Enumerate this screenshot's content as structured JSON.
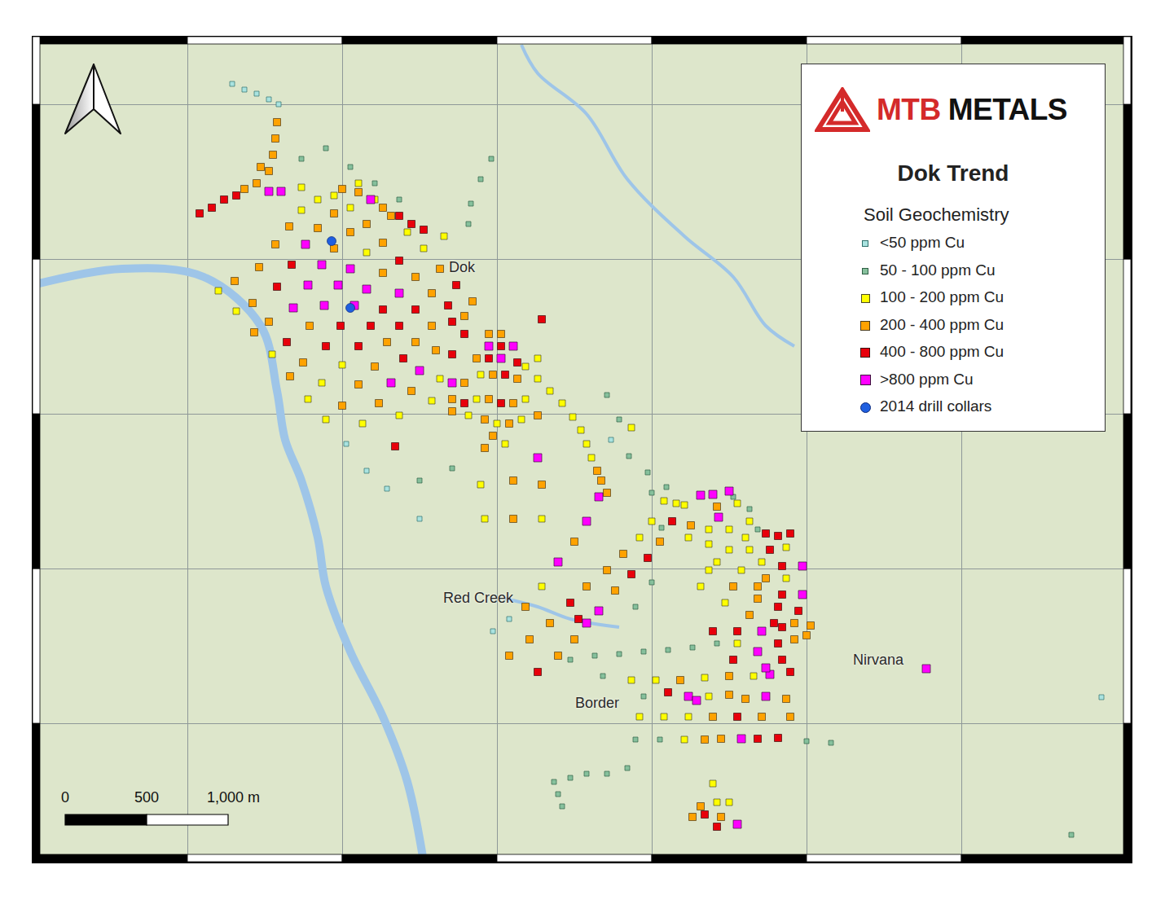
{
  "chart_data": {
    "type": "scatter",
    "title": "Dok Trend",
    "subtitle": "Soil Geochemistry",
    "brand": "MTB METALS",
    "xlim": [
      0,
      6740
    ],
    "ylim": [
      0,
      5065
    ],
    "xticks": [
      950,
      1900,
      2850,
      3800,
      4750,
      5700
    ],
    "yticks": [
      850,
      1800,
      2750,
      3700,
      4650
    ],
    "grid": true,
    "tick_labels": false,
    "legend": "upper right",
    "series": [
      {
        "name": "<50 ppm Cu",
        "color": "#a9e3e0",
        "marker": "square",
        "x": [
          1225,
          1300,
          1375,
          1450,
          1510,
          1925,
          2050,
          2375,
          2825,
          2925,
          6560,
          2175,
          3550
        ],
        "y": [
          4775,
          4740,
          4715,
          4680,
          4650,
          2565,
          2400,
          2105,
          1415,
          1490,
          1010,
          2290,
          2590
        ]
      },
      {
        "name": "50 - 100 ppm Cu",
        "color": "#86c09c",
        "marker": "square",
        "x": [
          1650,
          1800,
          1950,
          2100,
          2250,
          2675,
          2690,
          2750,
          2815,
          3525,
          3600,
          3660,
          3775,
          3800,
          3890,
          3500,
          3300,
          3450,
          3600,
          3750,
          3900,
          4050,
          4200,
          3750,
          3700,
          3850,
          4750,
          4900,
          3860,
          4300,
          4400,
          4450,
          3800,
          3700,
          3200,
          3300,
          3400,
          3525,
          3650,
          3225,
          3250,
          6375,
          2575,
          2375
        ],
        "y": [
          4315,
          4380,
          4265,
          4165,
          4065,
          3915,
          4040,
          4190,
          4315,
          2865,
          2715,
          2490,
          2390,
          2265,
          2300,
          1140,
          1240,
          1265,
          1275,
          1290,
          1300,
          1315,
          1340,
          1015,
          750,
          750,
          740,
          730,
          2050,
          2240,
          2165,
          2040,
          1715,
          1565,
          490,
          515,
          540,
          540,
          575,
          415,
          340,
          165,
          2415,
          2340
        ]
      },
      {
        "name": "100 - 200 ppm Cu",
        "color": "#ffff00",
        "marker": "square",
        "x": [
          1140,
          1250,
          1470,
          1690,
          1800,
          1775,
          2025,
          1900,
          2250,
          2450,
          2500,
          1650,
          1750,
          2050,
          1850,
          1950,
          2000,
          2100,
          2300,
          2400,
          1650,
          3025,
          2750,
          2725,
          3025,
          2675,
          2850,
          3000,
          2900,
          3100,
          3100,
          3175,
          3250,
          3315,
          3365,
          3400,
          3430,
          3675,
          2750,
          2775,
          3125,
          3125,
          3725,
          3800,
          3875,
          4000,
          3675,
          3825,
          4125,
          4425,
          4100,
          4250,
          4150,
          4200,
          4350,
          4325,
          4150,
          3725,
          3875,
          4025,
          4000,
          3950,
          4325,
          4150,
          4275,
          4400,
          4375,
          4025,
          4150,
          4275,
          4400,
          4625,
          4475,
          4625,
          4175,
          4200,
          4275,
          2525
        ],
        "y": [
          3505,
          3380,
          3115,
          2840,
          2715,
          2940,
          2690,
          3050,
          2740,
          2830,
          2965,
          4000,
          4065,
          3740,
          4090,
          4015,
          4165,
          4065,
          3865,
          3765,
          4140,
          3040,
          2990,
          2840,
          2840,
          2740,
          2690,
          2715,
          2565,
          2965,
          3090,
          2890,
          2815,
          2730,
          2650,
          2565,
          2480,
          2665,
          2315,
          2105,
          2105,
          1690,
          1990,
          2090,
          2215,
          2190,
          1115,
          1115,
          1130,
          1140,
          1690,
          1590,
          1790,
          1840,
          1790,
          1340,
          1015,
          890,
          890,
          890,
          750,
          2200,
          2200,
          2040,
          2040,
          2090,
          1990,
          1990,
          1950,
          1915,
          1915,
          1930,
          1840,
          1740,
          480,
          365,
          365,
          3840
        ]
      },
      {
        "name": "200 - 400 ppm Cu",
        "color": "#ffa200",
        "marker": "square",
        "x": [
          1500,
          1490,
          1475,
          1450,
          1300,
          1375,
          1400,
          1360,
          1580,
          1240,
          1350,
          1450,
          1660,
          1900,
          1390,
          1700,
          2000,
          2125,
          1490,
          2100,
          2325,
          1575,
          2175,
          1750,
          1850,
          2350,
          2475,
          1850,
          1950,
          2150,
          2450,
          2050,
          2150,
          2350,
          2450,
          2650,
          2200,
          2500,
          2700,
          1900,
          2000,
          2150,
          2800,
          2875,
          2725,
          2825,
          2975,
          2650,
          2575,
          2800,
          2950,
          2575,
          2775,
          2925,
          2825,
          2775,
          3100,
          3465,
          3490,
          2950,
          3125,
          2950,
          3025,
          3325,
          2925,
          3050,
          3175,
          3400,
          3525,
          3625,
          3225,
          3325,
          3575,
          3850,
          3525,
          3975,
          4275,
          4400,
          4675,
          4775,
          4300,
          4450,
          4500,
          4675,
          4750,
          4275,
          4375,
          4625,
          4175,
          4475,
          4650,
          4125,
          4225,
          4200,
          4040,
          4450,
          4100,
          4050,
          4225
        ],
        "y": [
          4540,
          4440,
          4340,
          4240,
          4130,
          4165,
          4265,
          3250,
          2980,
          3565,
          3430,
          3315,
          3065,
          2800,
          3650,
          3290,
          2930,
          2815,
          3790,
          3040,
          2890,
          3900,
          3190,
          3890,
          3765,
          3190,
          3140,
          3980,
          3865,
          3615,
          3290,
          3915,
          3800,
          3590,
          3490,
          3350,
          3965,
          3640,
          3440,
          4130,
          4110,
          4015,
          3240,
          3240,
          3090,
          2990,
          2965,
          2940,
          2840,
          2840,
          2815,
          2765,
          2715,
          2690,
          2615,
          2540,
          2740,
          2400,
          2340,
          2340,
          2315,
          2105,
          1565,
          1965,
          1265,
          1365,
          1465,
          1690,
          1790,
          1890,
          1265,
          1365,
          1665,
          1965,
          2265,
          1115,
          1140,
          1515,
          1465,
          1450,
          1690,
          1615,
          1740,
          1365,
          1390,
          1025,
          1000,
          1000,
          890,
          890,
          890,
          750,
          755,
          2180,
          2065,
          1690,
          340,
          275,
          275
        ]
      },
      {
        "name": "400 - 800 ppm Cu",
        "color": "#e8000b",
        "marker": "square",
        "x": [
          1025,
          1100,
          1175,
          1250,
          1560,
          2225,
          1500,
          1800,
          1590,
          1890,
          2000,
          2075,
          2275,
          2150,
          2250,
          2575,
          2350,
          2575,
          2650,
          2250,
          2550,
          2600,
          2250,
          2325,
          2400,
          2875,
          2800,
          2975,
          2900,
          2650,
          2875,
          3125,
          3300,
          3100,
          3675,
          3775,
          3925,
          3350,
          4650,
          4550,
          4575,
          4700,
          4175,
          4325,
          4600,
          4300,
          4575,
          4600,
          3900,
          4325,
          4450,
          4575,
          4500,
          4575,
          4650,
          4525,
          4600,
          4600,
          4125,
          4200
        ],
        "y": [
          3980,
          4015,
          4065,
          4090,
          3190,
          2550,
          3530,
          3165,
          3665,
          3290,
          3165,
          3290,
          3090,
          3390,
          3290,
          3115,
          3390,
          3315,
          3240,
          3690,
          3415,
          3540,
          3965,
          3915,
          3880,
          3165,
          3090,
          3065,
          2990,
          2815,
          2815,
          3330,
          1590,
          1165,
          1765,
          1865,
          2090,
          1490,
          1165,
          1465,
          1565,
          1540,
          1415,
          1415,
          1440,
          1240,
          1340,
          1240,
          1040,
          890,
          755,
          760,
          2015,
          2000,
          2015,
          1915,
          1815,
          1640,
          290,
          215
        ]
      },
      {
        "name": ">800 ppm Cu",
        "color": "#ff00ff",
        "marker": "square",
        "x": [
          1450,
          1525,
          1600,
          1690,
          1790,
          2200,
          1675,
          1775,
          1875,
          1975,
          2375,
          1950,
          2050,
          2250,
          2075,
          2800,
          2950,
          2875,
          2575,
          3100,
          3225,
          3400,
          3475,
          3400,
          3475,
          4525,
          4475,
          4450,
          4500,
          4025,
          4500,
          4350,
          4100,
          4175,
          4275,
          4210,
          4725,
          4725,
          5485,
          4325,
          4075
        ],
        "y": [
          4115,
          4115,
          3400,
          3540,
          3415,
          2940,
          3790,
          3665,
          3540,
          3415,
          3015,
          3640,
          3515,
          3490,
          4065,
          3165,
          3165,
          3090,
          2940,
          2480,
          1840,
          2090,
          2240,
          1465,
          1540,
          1150,
          1415,
          1290,
          1190,
          1015,
          1015,
          755,
          2250,
          2255,
          2275,
          2115,
          1815,
          1640,
          1185,
          230,
          990
        ]
      },
      {
        "name": "2014 drill collars",
        "color": "#1f5fe0",
        "marker": "circle",
        "x": [
          1835,
          1950
        ],
        "y": [
          3810,
          3400
        ]
      }
    ],
    "annotations": [
      {
        "text": "Dok",
        "x": 2635,
        "y": 3650
      },
      {
        "text": "Red Creek",
        "x": 2735,
        "y": 1620
      },
      {
        "text": "Border",
        "x": 3465,
        "y": 975
      },
      {
        "text": "Nirvana",
        "x": 5190,
        "y": 1240
      }
    ],
    "scale_bar": {
      "ticks": [
        {
          "value": 0,
          "label": "0"
        },
        {
          "value": 500,
          "label": "500"
        },
        {
          "value": 1000,
          "label": "1,000 m"
        }
      ]
    },
    "rivers": [
      {
        "x": [
          0,
          550,
          1050,
          1400,
          1500,
          1550,
          1650,
          1750,
          1800,
          1950,
          2150,
          2300,
          2400
        ],
        "y": [
          3540,
          3640,
          3590,
          3290,
          2890,
          2590,
          2340,
          1990,
          1690,
          1290,
          890,
          490,
          0
        ]
      },
      {
        "x": [
          3000,
          3100,
          3400,
          3650,
          4000,
          4300,
          4500,
          4675
        ],
        "y": [
          5015,
          4840,
          4590,
          4190,
          3840,
          3590,
          3290,
          3165
        ]
      },
      {
        "x": [
          2900,
          3100,
          3300,
          3600
        ],
        "y": [
          1615,
          1565,
          1490,
          1440
        ]
      }
    ]
  }
}
